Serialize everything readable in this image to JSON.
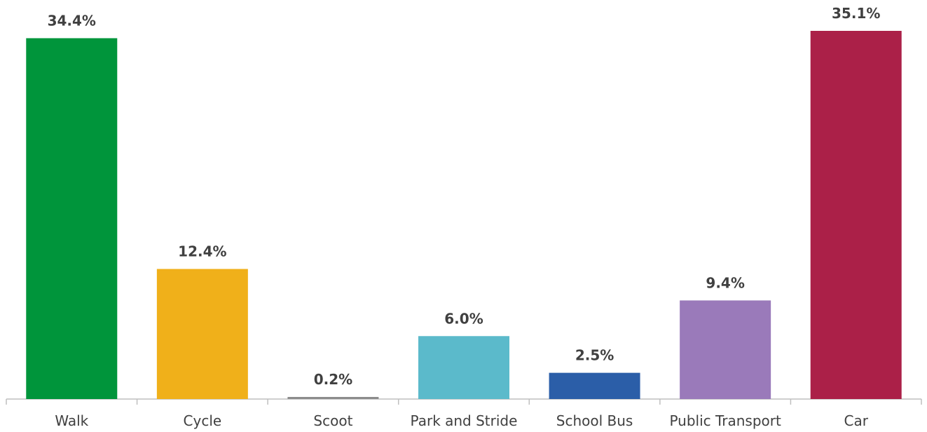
{
  "chart_data": {
    "type": "bar",
    "categories": [
      "Walk",
      "Cycle",
      "Scoot",
      "Park and Stride",
      "School Bus",
      "Public Transport",
      "Car"
    ],
    "values": [
      34.4,
      12.4,
      0.2,
      6.0,
      2.5,
      9.4,
      35.1
    ],
    "value_labels": [
      "34.4%",
      "12.4%",
      "0.2%",
      "6.0%",
      "2.5%",
      "9.4%",
      "35.1%"
    ],
    "colors": [
      "#00953b",
      "#f0b01a",
      "#8c8c8c",
      "#5bbacb",
      "#2b5ea8",
      "#9a7aba",
      "#ab2048"
    ],
    "axis_color": "#bfbfbf",
    "ylim": [
      0,
      35.1
    ],
    "grid": false,
    "legend": "none",
    "title": "",
    "xlabel": "",
    "ylabel": ""
  }
}
